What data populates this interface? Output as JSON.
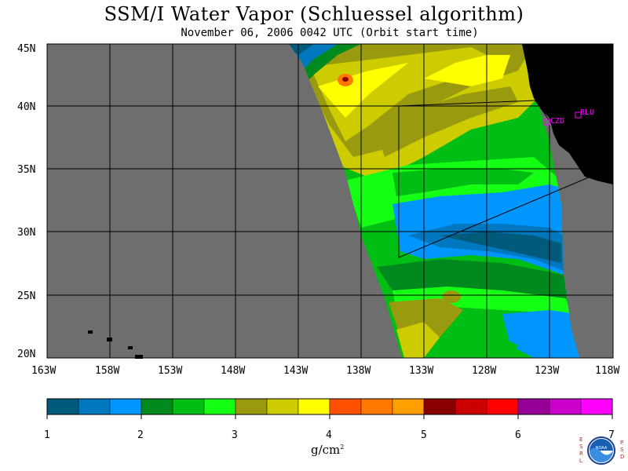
{
  "header": {
    "title": "SSM/I Water Vapor (Schluessel algorithm)",
    "subtitle": "November 06, 2006  0042 UTC  (Orbit start time)"
  },
  "map": {
    "lon_labels": [
      "163W",
      "158W",
      "153W",
      "148W",
      "143W",
      "138W",
      "133W",
      "128W",
      "123W",
      "118W"
    ],
    "lat_labels": [
      "45N",
      "40N",
      "35N",
      "30N",
      "25N",
      "20N"
    ],
    "stations": [
      {
        "id": "czd",
        "label": "CZD"
      },
      {
        "id": "blu",
        "label": "BLU"
      }
    ],
    "colors": {
      "no_data": "#6e6e6e",
      "land": "#000000",
      "station": "#ff00ff"
    }
  },
  "colorbar": {
    "tick_labels": [
      "1",
      "2",
      "3",
      "4",
      "5",
      "6",
      "7"
    ],
    "unit_label": "g/cm",
    "unit_exp": "2",
    "colors": [
      "#005a7a",
      "#0078c0",
      "#0096ff",
      "#008a1e",
      "#00be14",
      "#14ff14",
      "#9a9a10",
      "#cccc00",
      "#ffff00",
      "#ff5000",
      "#ff7800",
      "#ffa000",
      "#8a0000",
      "#cc0000",
      "#ff0000",
      "#960096",
      "#cc00cc",
      "#ff00ff"
    ]
  },
  "logo": {
    "left_letters": "ESRL",
    "right_letters": "PSD",
    "center_text": "NOAA"
  }
}
